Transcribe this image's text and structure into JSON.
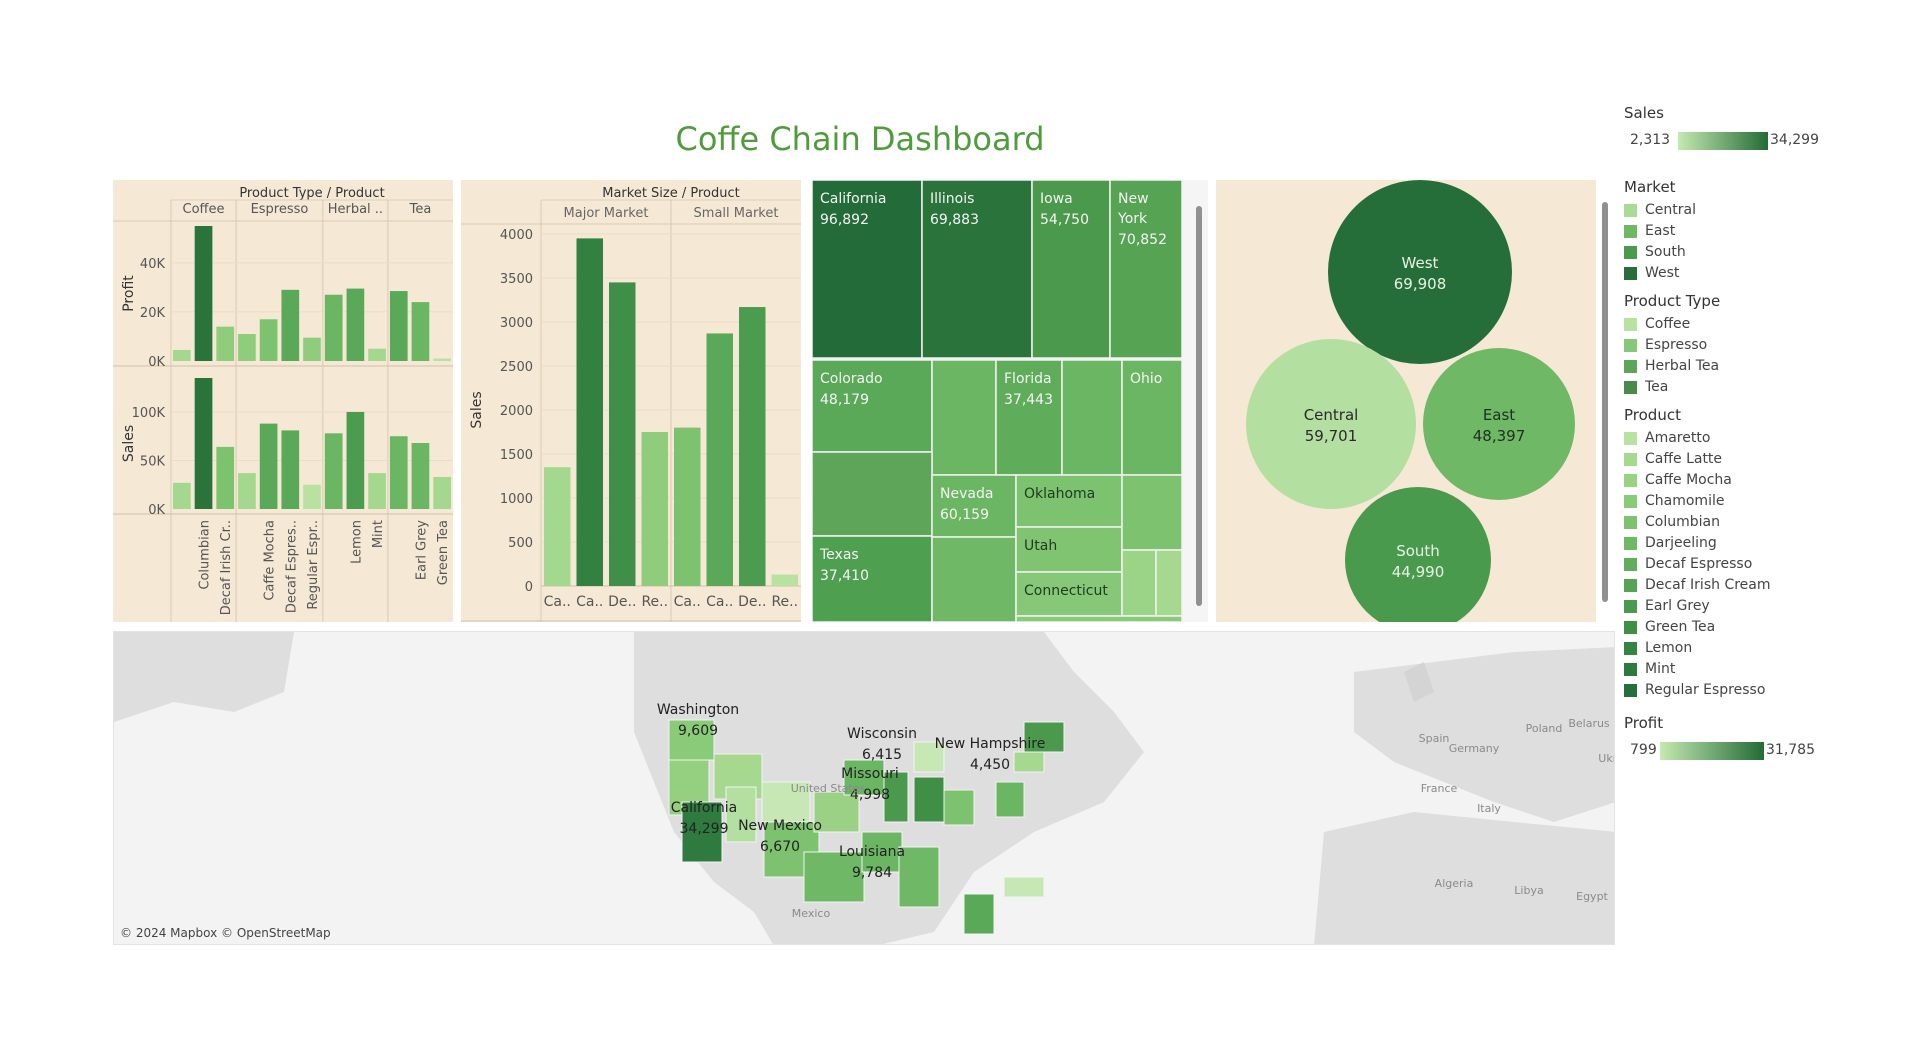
{
  "title": "Coffe Chain Dashboard",
  "colors": {
    "panel_bg": "#f5e9d6",
    "dark": "#256e3a",
    "mid": "#4d9a4f",
    "light": "#b3dfa0"
  },
  "chart_data": [
    {
      "type": "bar",
      "header": "Product Type  /  Product",
      "groups": [
        "Coffee",
        "Espresso",
        "Herbal ..",
        "Tea"
      ],
      "categories": [
        "Amaretto",
        "Columbian",
        "Decaf Irish Cr..",
        "Caffe Latte",
        "Caffe Mocha",
        "Decaf Espres..",
        "Regular Espr..",
        "Chamomile",
        "Lemon",
        "Mint",
        "Darjeeling",
        "Earl Grey",
        "Green Tea"
      ],
      "tick_labels": [
        "",
        "Columbian",
        "Decaf Irish Cr..",
        "",
        "Caffe Mocha",
        "Decaf Espres..",
        "Regular Espr..",
        "",
        "Lemon",
        "Mint",
        "",
        "Earl Grey",
        "Green Tea"
      ],
      "group_sizes": [
        3,
        4,
        3,
        3
      ],
      "series": [
        {
          "name": "Profit",
          "values": [
            4500,
            55000,
            14000,
            11000,
            17000,
            29000,
            9500,
            27000,
            29500,
            5000,
            28500,
            24000,
            1000
          ],
          "yticks": [
            "0K",
            "20K",
            "40K"
          ],
          "ylim": [
            0,
            55000
          ],
          "ylabel": "Profit"
        },
        {
          "name": "Sales",
          "values": [
            27000,
            135000,
            64000,
            37000,
            88000,
            81000,
            25000,
            78000,
            100000,
            37000,
            75000,
            68000,
            33000
          ],
          "yticks": [
            "0K",
            "50K",
            "100K"
          ],
          "ylim": [
            0,
            135000
          ],
          "ylabel": "Sales"
        }
      ]
    },
    {
      "type": "bar",
      "header": "Market Size  /  Product",
      "groups": [
        "Major Market",
        "Small Market"
      ],
      "categories": [
        "Ca..",
        "Ca..",
        "De..",
        "Re..",
        "Ca..",
        "Ca..",
        "De..",
        "Re.."
      ],
      "values": [
        1350,
        3950,
        3450,
        1750,
        1800,
        2870,
        3170,
        130
      ],
      "ylabel": "Sales",
      "yticks": [
        "0",
        "500",
        "1000",
        "1500",
        "2000",
        "2500",
        "3000",
        "3500",
        "4000"
      ],
      "ylim": [
        0,
        4000
      ]
    },
    {
      "type": "treemap",
      "cells": [
        {
          "label": "California",
          "value": "96,892"
        },
        {
          "label": "Illinois",
          "value": "69,883"
        },
        {
          "label": "Iowa",
          "value": "54,750"
        },
        {
          "label": "New York",
          "value": "70,852"
        },
        {
          "label": "Colorado",
          "value": "48,179"
        },
        {
          "label": "Florida",
          "value": "37,443"
        },
        {
          "label": "Ohio",
          "value": ""
        },
        {
          "label": "Texas",
          "value": "37,410"
        },
        {
          "label": "Nevada",
          "value": "60,159"
        },
        {
          "label": "Oklahoma",
          "value": ""
        },
        {
          "label": "Utah",
          "value": ""
        },
        {
          "label": "Connecticut",
          "value": ""
        }
      ]
    },
    {
      "type": "bubble",
      "bubbles": [
        {
          "label": "West",
          "value": "69,908"
        },
        {
          "label": "Central",
          "value": "59,701"
        },
        {
          "label": "East",
          "value": "48,397"
        },
        {
          "label": "South",
          "value": "44,990"
        }
      ]
    },
    {
      "type": "map",
      "labels": [
        {
          "name": "Washington",
          "value": "9,609"
        },
        {
          "name": "Wisconsin",
          "value": "6,415"
        },
        {
          "name": "New Hampshire",
          "value": "4,450"
        },
        {
          "name": "Missouri",
          "value": "4,998"
        },
        {
          "name": "California",
          "value": "34,299"
        },
        {
          "name": "New Mexico",
          "value": "6,670"
        },
        {
          "name": "Louisiana",
          "value": "9,784"
        }
      ],
      "place_labels": [
        "United States",
        "Mexico",
        "Spain",
        "France",
        "Germany",
        "Poland",
        "Belarus",
        "Ukr.",
        "Italy",
        "Algeria",
        "Libya",
        "Egypt"
      ],
      "attribution": "© 2024 Mapbox © OpenStreetMap"
    }
  ],
  "legend": {
    "sales": {
      "title": "Sales",
      "min": "2,313",
      "max": "34,299"
    },
    "market": {
      "title": "Market",
      "items": [
        {
          "label": "Central",
          "color": "#a8db95"
        },
        {
          "label": "East",
          "color": "#6fb865"
        },
        {
          "label": "South",
          "color": "#4a9a4e"
        },
        {
          "label": "West",
          "color": "#276e3b"
        }
      ]
    },
    "product_type": {
      "title": "Product Type",
      "items": [
        {
          "label": "Coffee",
          "color": "#b7e29f"
        },
        {
          "label": "Espresso",
          "color": "#86c877"
        },
        {
          "label": "Herbal Tea",
          "color": "#5ea55a"
        },
        {
          "label": "Tea",
          "color": "#4a8b4c"
        }
      ]
    },
    "product": {
      "title": "Product",
      "items": [
        {
          "label": "Amaretto",
          "color": "#b7e29f"
        },
        {
          "label": "Caffe Latte",
          "color": "#a6d98f"
        },
        {
          "label": "Caffe Mocha",
          "color": "#98d384"
        },
        {
          "label": "Chamomile",
          "color": "#8acb7a"
        },
        {
          "label": "Columbian",
          "color": "#7cc26f"
        },
        {
          "label": "Darjeeling",
          "color": "#6fb865"
        },
        {
          "label": "Decaf Espresso",
          "color": "#62ad5b"
        },
        {
          "label": "Decaf Irish Cream",
          "color": "#55a353"
        },
        {
          "label": "Earl Grey",
          "color": "#4a994c"
        },
        {
          "label": "Green Tea",
          "color": "#3f8f47"
        },
        {
          "label": "Lemon",
          "color": "#358542"
        },
        {
          "label": "Mint",
          "color": "#2d7a3e"
        },
        {
          "label": "Regular Espresso",
          "color": "#266f3a"
        }
      ]
    },
    "profit": {
      "title": "Profit",
      "min": "799",
      "max": "31,785"
    }
  }
}
